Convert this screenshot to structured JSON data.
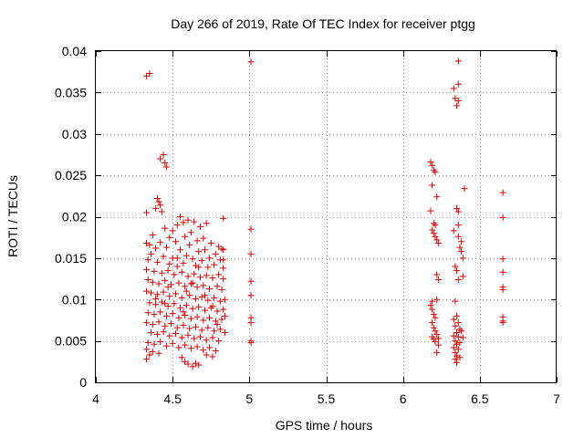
{
  "chart_data": {
    "type": "scatter",
    "title": "Day 266 of 2019, Rate Of TEC Index for receiver ptgg",
    "xlabel": "GPS time / hours",
    "ylabel": "ROTI / TECUs",
    "xlim": [
      4,
      7
    ],
    "ylim": [
      0,
      0.04
    ],
    "grid": true,
    "marker": "+",
    "marker_color": "#dd0000",
    "x_ticks": [
      {
        "value": 4,
        "label": "4"
      },
      {
        "value": 4.5,
        "label": "4.5"
      },
      {
        "value": 5,
        "label": "5"
      },
      {
        "value": 5.5,
        "label": "5.5"
      },
      {
        "value": 6,
        "label": "6"
      },
      {
        "value": 6.5,
        "label": "6.5"
      },
      {
        "value": 7,
        "label": "7"
      }
    ],
    "y_ticks": [
      {
        "value": 0,
        "label": "0"
      },
      {
        "value": 0.005,
        "label": "0.005"
      },
      {
        "value": 0.01,
        "label": "0.01"
      },
      {
        "value": 0.015,
        "label": "0.015"
      },
      {
        "value": 0.02,
        "label": "0.02"
      },
      {
        "value": 0.025,
        "label": "0.025"
      },
      {
        "value": 0.03,
        "label": "0.03"
      },
      {
        "value": 0.035,
        "label": "0.035"
      },
      {
        "value": 0.04,
        "label": "0.04"
      }
    ],
    "series": [
      {
        "name": "ROTI",
        "points": [
          [
            4.33,
            0.037
          ],
          [
            4.35,
            0.0373
          ],
          [
            4.42,
            0.027
          ],
          [
            4.44,
            0.0275
          ],
          [
            4.46,
            0.026
          ],
          [
            4.45,
            0.0265
          ],
          [
            4.4,
            0.0222
          ],
          [
            4.41,
            0.0218
          ],
          [
            4.42,
            0.0214
          ],
          [
            4.39,
            0.021
          ],
          [
            4.43,
            0.0206
          ],
          [
            4.33,
            0.0205
          ],
          [
            4.55,
            0.02
          ],
          [
            4.6,
            0.0196
          ],
          [
            4.57,
            0.0193
          ],
          [
            4.53,
            0.019
          ],
          [
            4.64,
            0.0194
          ],
          [
            4.68,
            0.0188
          ],
          [
            4.72,
            0.0192
          ],
          [
            4.83,
            0.0198
          ],
          [
            4.45,
            0.0186
          ],
          [
            4.5,
            0.0183
          ],
          [
            4.62,
            0.0181
          ],
          [
            4.37,
            0.0178
          ],
          [
            4.48,
            0.0175
          ],
          [
            4.58,
            0.0176
          ],
          [
            4.7,
            0.0174
          ],
          [
            4.66,
            0.0171
          ],
          [
            4.33,
            0.0168
          ],
          [
            4.35,
            0.0166
          ],
          [
            4.42,
            0.0169
          ],
          [
            4.52,
            0.017
          ],
          [
            4.61,
            0.0166
          ],
          [
            4.75,
            0.0168
          ],
          [
            4.8,
            0.0164
          ],
          [
            4.82,
            0.0161
          ],
          [
            4.39,
            0.0162
          ],
          [
            4.46,
            0.0163
          ],
          [
            4.55,
            0.016
          ],
          [
            4.67,
            0.0158
          ],
          [
            4.71,
            0.016
          ],
          [
            4.78,
            0.0155
          ],
          [
            4.36,
            0.0155
          ],
          [
            4.44,
            0.0152
          ],
          [
            4.5,
            0.015
          ],
          [
            4.59,
            0.0153
          ],
          [
            4.63,
            0.0149
          ],
          [
            4.69,
            0.0147
          ],
          [
            4.74,
            0.015
          ],
          [
            4.81,
            0.0148
          ],
          [
            4.34,
            0.0148
          ],
          [
            4.4,
            0.0145
          ],
          [
            4.48,
            0.0143
          ],
          [
            4.53,
            0.014
          ],
          [
            4.57,
            0.0144
          ],
          [
            4.65,
            0.0141
          ],
          [
            4.73,
            0.0139
          ],
          [
            4.77,
            0.0142
          ],
          [
            4.83,
            0.0138
          ],
          [
            4.33,
            0.0136
          ],
          [
            4.38,
            0.0134
          ],
          [
            4.43,
            0.0132
          ],
          [
            4.47,
            0.0135
          ],
          [
            4.51,
            0.013
          ],
          [
            4.56,
            0.0133
          ],
          [
            4.6,
            0.0128
          ],
          [
            4.64,
            0.0131
          ],
          [
            4.68,
            0.0127
          ],
          [
            4.72,
            0.0129
          ],
          [
            4.76,
            0.0126
          ],
          [
            4.8,
            0.013
          ],
          [
            4.34,
            0.0124
          ],
          [
            4.37,
            0.0121
          ],
          [
            4.41,
            0.0119
          ],
          [
            4.45,
            0.0123
          ],
          [
            4.49,
            0.0118
          ],
          [
            4.54,
            0.012
          ],
          [
            4.58,
            0.0116
          ],
          [
            4.62,
            0.0119
          ],
          [
            4.66,
            0.0115
          ],
          [
            4.7,
            0.0117
          ],
          [
            4.74,
            0.0113
          ],
          [
            4.79,
            0.0116
          ],
          [
            4.82,
            0.0112
          ],
          [
            4.33,
            0.011
          ],
          [
            4.36,
            0.0108
          ],
          [
            4.4,
            0.0106
          ],
          [
            4.44,
            0.0109
          ],
          [
            4.48,
            0.0104
          ],
          [
            4.52,
            0.0107
          ],
          [
            4.56,
            0.0102
          ],
          [
            4.61,
            0.0105
          ],
          [
            4.65,
            0.0101
          ],
          [
            4.69,
            0.0103
          ],
          [
            4.73,
            0.0099
          ],
          [
            4.77,
            0.0102
          ],
          [
            4.81,
            0.0098
          ],
          [
            4.35,
            0.0096
          ],
          [
            4.39,
            0.0094
          ],
          [
            4.43,
            0.0097
          ],
          [
            4.47,
            0.0092
          ],
          [
            4.51,
            0.0095
          ],
          [
            4.55,
            0.009
          ],
          [
            4.59,
            0.0093
          ],
          [
            4.63,
            0.0089
          ],
          [
            4.67,
            0.0091
          ],
          [
            4.71,
            0.0087
          ],
          [
            4.75,
            0.009
          ],
          [
            4.79,
            0.0086
          ],
          [
            4.83,
            0.0088
          ],
          [
            4.34,
            0.0084
          ],
          [
            4.38,
            0.0082
          ],
          [
            4.42,
            0.0085
          ],
          [
            4.46,
            0.008
          ],
          [
            4.5,
            0.0083
          ],
          [
            4.54,
            0.0078
          ],
          [
            4.58,
            0.0081
          ],
          [
            4.62,
            0.0077
          ],
          [
            4.66,
            0.0079
          ],
          [
            4.7,
            0.0075
          ],
          [
            4.74,
            0.0078
          ],
          [
            4.78,
            0.0074
          ],
          [
            4.82,
            0.0076
          ],
          [
            4.33,
            0.0072
          ],
          [
            4.37,
            0.007
          ],
          [
            4.41,
            0.0073
          ],
          [
            4.45,
            0.0068
          ],
          [
            4.49,
            0.0071
          ],
          [
            4.53,
            0.0066
          ],
          [
            4.57,
            0.0069
          ],
          [
            4.61,
            0.0065
          ],
          [
            4.65,
            0.0067
          ],
          [
            4.69,
            0.0063
          ],
          [
            4.73,
            0.0066
          ],
          [
            4.77,
            0.0062
          ],
          [
            4.81,
            0.0064
          ],
          [
            4.36,
            0.006
          ],
          [
            4.4,
            0.0058
          ],
          [
            4.44,
            0.0061
          ],
          [
            4.48,
            0.0056
          ],
          [
            4.52,
            0.0059
          ],
          [
            4.56,
            0.0054
          ],
          [
            4.6,
            0.0057
          ],
          [
            4.64,
            0.0053
          ],
          [
            4.68,
            0.0055
          ],
          [
            4.72,
            0.0051
          ],
          [
            4.76,
            0.0054
          ],
          [
            4.8,
            0.005
          ],
          [
            4.34,
            0.0048
          ],
          [
            4.38,
            0.0046
          ],
          [
            4.42,
            0.0049
          ],
          [
            4.46,
            0.0044
          ],
          [
            4.5,
            0.0047
          ],
          [
            4.54,
            0.0042
          ],
          [
            4.58,
            0.0045
          ],
          [
            4.62,
            0.0041
          ],
          [
            4.66,
            0.0043
          ],
          [
            4.7,
            0.0039
          ],
          [
            4.74,
            0.0042
          ],
          [
            4.78,
            0.0038
          ],
          [
            4.33,
            0.004
          ],
          [
            4.37,
            0.0037
          ],
          [
            4.35,
            0.0033
          ],
          [
            4.33,
            0.0028
          ],
          [
            4.41,
            0.0035
          ],
          [
            4.56,
            0.003
          ],
          [
            4.58,
            0.0025
          ],
          [
            4.6,
            0.0022
          ],
          [
            4.63,
            0.0019
          ],
          [
            4.65,
            0.0023
          ],
          [
            4.67,
            0.0021
          ],
          [
            4.72,
            0.0033
          ],
          [
            4.76,
            0.0031
          ],
          [
            4.53,
            0.015
          ],
          [
            4.59,
            0.011
          ],
          [
            4.63,
            0.012
          ],
          [
            4.45,
            0.0095
          ],
          [
            4.39,
            0.0101
          ],
          [
            4.47,
            0.0115
          ],
          [
            4.57,
            0.0085
          ],
          [
            4.67,
            0.0139
          ],
          [
            4.71,
            0.0105
          ],
          [
            4.76,
            0.0092
          ],
          [
            4.79,
            0.007
          ],
          [
            4.83,
            0.016
          ],
          [
            4.83,
            0.0125
          ],
          [
            4.84,
            0.01
          ],
          [
            4.84,
            0.008
          ],
          [
            4.84,
            0.006
          ],
          [
            4.83,
            0.0148
          ],
          [
            5.01,
            0.0387
          ],
          [
            5.01,
            0.0185
          ],
          [
            5.01,
            0.0155
          ],
          [
            5.01,
            0.0122
          ],
          [
            5.01,
            0.0105
          ],
          [
            5.01,
            0.0078
          ],
          [
            5.01,
            0.0072
          ],
          [
            5.01,
            0.005
          ],
          [
            5.01,
            0.0048
          ],
          [
            6.18,
            0.0266
          ],
          [
            6.19,
            0.0262
          ],
          [
            6.2,
            0.0256
          ],
          [
            6.21,
            0.0254
          ],
          [
            6.19,
            0.0238
          ],
          [
            6.22,
            0.0224
          ],
          [
            6.18,
            0.0207
          ],
          [
            6.2,
            0.0192
          ],
          [
            6.21,
            0.019
          ],
          [
            6.19,
            0.0184
          ],
          [
            6.2,
            0.018
          ],
          [
            6.21,
            0.0176
          ],
          [
            6.22,
            0.0172
          ],
          [
            6.23,
            0.0168
          ],
          [
            6.22,
            0.013
          ],
          [
            6.23,
            0.0124
          ],
          [
            6.22,
            0.01
          ],
          [
            6.19,
            0.0098
          ],
          [
            6.18,
            0.0093
          ],
          [
            6.19,
            0.0088
          ],
          [
            6.2,
            0.0082
          ],
          [
            6.21,
            0.0078
          ],
          [
            6.19,
            0.0072
          ],
          [
            6.2,
            0.0066
          ],
          [
            6.21,
            0.0062
          ],
          [
            6.22,
            0.0058
          ],
          [
            6.19,
            0.0055
          ],
          [
            6.2,
            0.0052
          ],
          [
            6.21,
            0.0049
          ],
          [
            6.23,
            0.0045
          ],
          [
            6.22,
            0.0036
          ],
          [
            6.23,
            0.0053
          ],
          [
            6.33,
            0.0355
          ],
          [
            6.36,
            0.0388
          ],
          [
            6.36,
            0.036
          ],
          [
            6.34,
            0.0343
          ],
          [
            6.36,
            0.034
          ],
          [
            6.35,
            0.0334
          ],
          [
            6.4,
            0.0234
          ],
          [
            6.35,
            0.021
          ],
          [
            6.36,
            0.0206
          ],
          [
            6.36,
            0.019
          ],
          [
            6.33,
            0.0183
          ],
          [
            6.36,
            0.0176
          ],
          [
            6.38,
            0.017
          ],
          [
            6.37,
            0.0163
          ],
          [
            6.38,
            0.0158
          ],
          [
            6.39,
            0.015
          ],
          [
            6.34,
            0.014
          ],
          [
            6.35,
            0.0135
          ],
          [
            6.39,
            0.0128
          ],
          [
            6.36,
            0.0124
          ],
          [
            6.34,
            0.0098
          ],
          [
            6.35,
            0.008
          ],
          [
            6.33,
            0.0076
          ],
          [
            6.36,
            0.0072
          ],
          [
            6.34,
            0.0068
          ],
          [
            6.37,
            0.0064
          ],
          [
            6.35,
            0.006
          ],
          [
            6.38,
            0.0062
          ],
          [
            6.33,
            0.0056
          ],
          [
            6.36,
            0.0055
          ],
          [
            6.39,
            0.0054
          ],
          [
            6.34,
            0.005
          ],
          [
            6.37,
            0.0048
          ],
          [
            6.35,
            0.0046
          ],
          [
            6.33,
            0.0042
          ],
          [
            6.36,
            0.004
          ],
          [
            6.34,
            0.0036
          ],
          [
            6.35,
            0.0032
          ],
          [
            6.34,
            0.0028
          ],
          [
            6.35,
            0.0024
          ],
          [
            6.37,
            0.003
          ],
          [
            6.65,
            0.0229
          ],
          [
            6.65,
            0.0199
          ],
          [
            6.65,
            0.0149
          ],
          [
            6.65,
            0.0133
          ],
          [
            6.65,
            0.0115
          ],
          [
            6.65,
            0.0112
          ],
          [
            6.65,
            0.0079
          ],
          [
            6.65,
            0.0074
          ],
          [
            6.65,
            0.0072
          ]
        ]
      }
    ]
  }
}
